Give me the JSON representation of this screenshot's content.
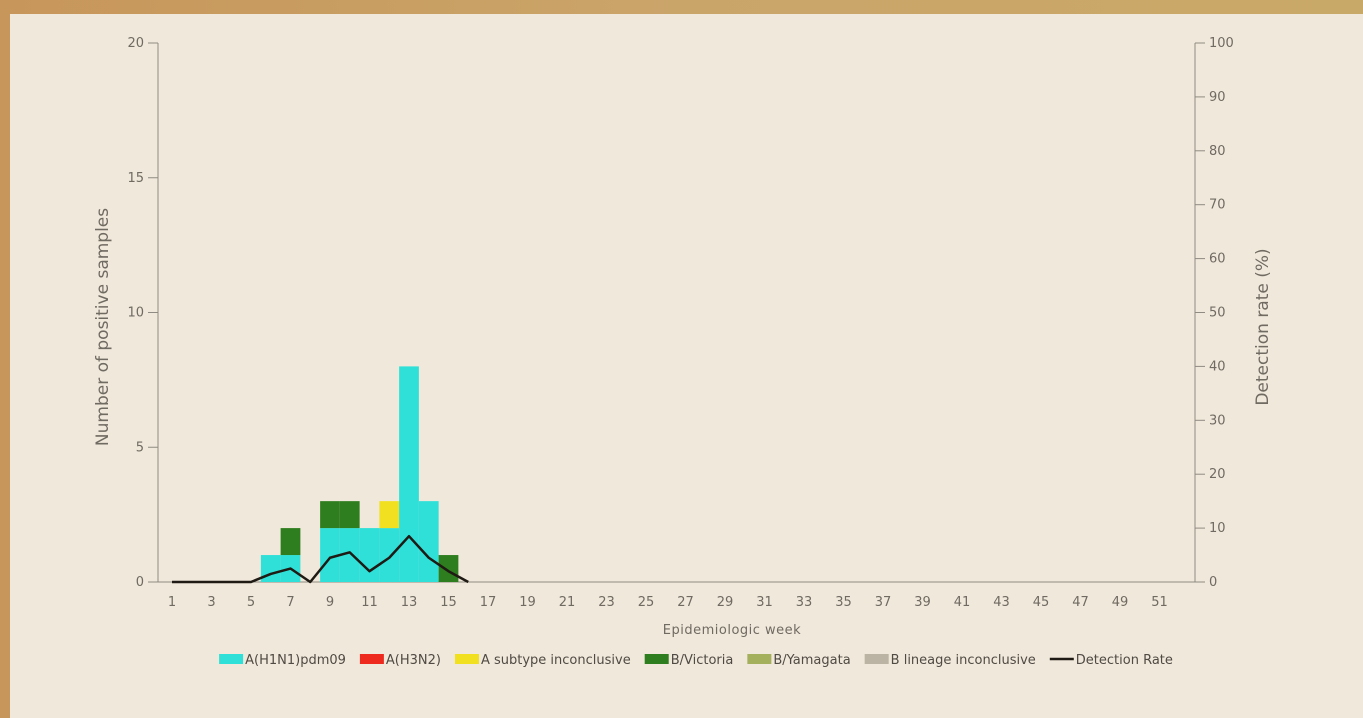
{
  "chart_data": {
    "type": "bar",
    "stacked": true,
    "xlabel": "Epidemiologic week",
    "ylabel": "Number of positive samples",
    "y2label": "Detection rate (%)",
    "ylim": [
      0,
      20
    ],
    "y2lim": [
      0,
      100
    ],
    "yticks": [
      0,
      5,
      10,
      15,
      20
    ],
    "y2ticks": [
      0,
      10,
      20,
      30,
      40,
      50,
      60,
      70,
      80,
      90,
      100
    ],
    "weeks": [
      1,
      2,
      3,
      4,
      5,
      6,
      7,
      8,
      9,
      10,
      11,
      12,
      13,
      14,
      15,
      16,
      17,
      18,
      19,
      20,
      21,
      22,
      23,
      24,
      25,
      26,
      27,
      28,
      29,
      30,
      31,
      32,
      33,
      34,
      35,
      36,
      37,
      38,
      39,
      40,
      41,
      42,
      43,
      44,
      45,
      46,
      47,
      48,
      49,
      50,
      51,
      52
    ],
    "xtick_labels": [
      "1",
      "3",
      "5",
      "7",
      "9",
      "11",
      "13",
      "15",
      "17",
      "19",
      "21",
      "23",
      "25",
      "27",
      "29",
      "31",
      "33",
      "35",
      "37",
      "39",
      "41",
      "43",
      "45",
      "47",
      "49",
      "51"
    ],
    "series": [
      {
        "name": "A(H1N1)pdm09",
        "color": "#2ee0d8",
        "values": [
          0,
          0,
          0,
          0,
          0,
          1,
          1,
          0,
          2,
          2,
          2,
          2,
          8,
          3,
          0,
          0,
          0,
          0,
          0,
          0,
          0,
          0,
          0,
          0,
          0,
          0,
          0,
          0,
          0,
          0,
          0,
          0,
          0,
          0,
          0,
          0,
          0,
          0,
          0,
          0,
          0,
          0,
          0,
          0,
          0,
          0,
          0,
          0,
          0,
          0,
          0,
          0
        ]
      },
      {
        "name": "A(H3N2)",
        "color": "#ee2a1e",
        "values": [
          0,
          0,
          0,
          0,
          0,
          0,
          0,
          0,
          0,
          0,
          0,
          0,
          0,
          0,
          0,
          0,
          0,
          0,
          0,
          0,
          0,
          0,
          0,
          0,
          0,
          0,
          0,
          0,
          0,
          0,
          0,
          0,
          0,
          0,
          0,
          0,
          0,
          0,
          0,
          0,
          0,
          0,
          0,
          0,
          0,
          0,
          0,
          0,
          0,
          0,
          0,
          0
        ]
      },
      {
        "name": "A subtype inconclusive",
        "color": "#f0e020",
        "values": [
          0,
          0,
          0,
          0,
          0,
          0,
          0,
          0,
          0,
          0,
          0,
          1,
          0,
          0,
          0,
          0,
          0,
          0,
          0,
          0,
          0,
          0,
          0,
          0,
          0,
          0,
          0,
          0,
          0,
          0,
          0,
          0,
          0,
          0,
          0,
          0,
          0,
          0,
          0,
          0,
          0,
          0,
          0,
          0,
          0,
          0,
          0,
          0,
          0,
          0,
          0,
          0
        ]
      },
      {
        "name": "B/Victoria",
        "color": "#2e7d1e",
        "values": [
          0,
          0,
          0,
          0,
          0,
          0,
          1,
          0,
          1,
          1,
          0,
          0,
          0,
          0,
          1,
          0,
          0,
          0,
          0,
          0,
          0,
          0,
          0,
          0,
          0,
          0,
          0,
          0,
          0,
          0,
          0,
          0,
          0,
          0,
          0,
          0,
          0,
          0,
          0,
          0,
          0,
          0,
          0,
          0,
          0,
          0,
          0,
          0,
          0,
          0,
          0,
          0
        ]
      },
      {
        "name": "B/Yamagata",
        "color": "#a4b05c",
        "values": [
          0,
          0,
          0,
          0,
          0,
          0,
          0,
          0,
          0,
          0,
          0,
          0,
          0,
          0,
          0,
          0,
          0,
          0,
          0,
          0,
          0,
          0,
          0,
          0,
          0,
          0,
          0,
          0,
          0,
          0,
          0,
          0,
          0,
          0,
          0,
          0,
          0,
          0,
          0,
          0,
          0,
          0,
          0,
          0,
          0,
          0,
          0,
          0,
          0,
          0,
          0,
          0
        ]
      },
      {
        "name": "B lineage inconclusive",
        "color": "#bbb4a4",
        "values": [
          0,
          0,
          0,
          0,
          0,
          0,
          0,
          0,
          0,
          0,
          0,
          0,
          0,
          0,
          0,
          0,
          0,
          0,
          0,
          0,
          0,
          0,
          0,
          0,
          0,
          0,
          0,
          0,
          0,
          0,
          0,
          0,
          0,
          0,
          0,
          0,
          0,
          0,
          0,
          0,
          0,
          0,
          0,
          0,
          0,
          0,
          0,
          0,
          0,
          0,
          0,
          0
        ]
      }
    ],
    "line": {
      "name": "Detection Rate",
      "color": "#1f1a14",
      "weeks": [
        1,
        2,
        3,
        4,
        5,
        6,
        7,
        8,
        9,
        10,
        11,
        12,
        13,
        14,
        15,
        16
      ],
      "values": [
        0,
        0,
        0,
        0,
        0,
        1.5,
        2.5,
        0,
        4.5,
        5.5,
        2,
        4.5,
        8.5,
        4.5,
        2,
        0
      ]
    }
  }
}
